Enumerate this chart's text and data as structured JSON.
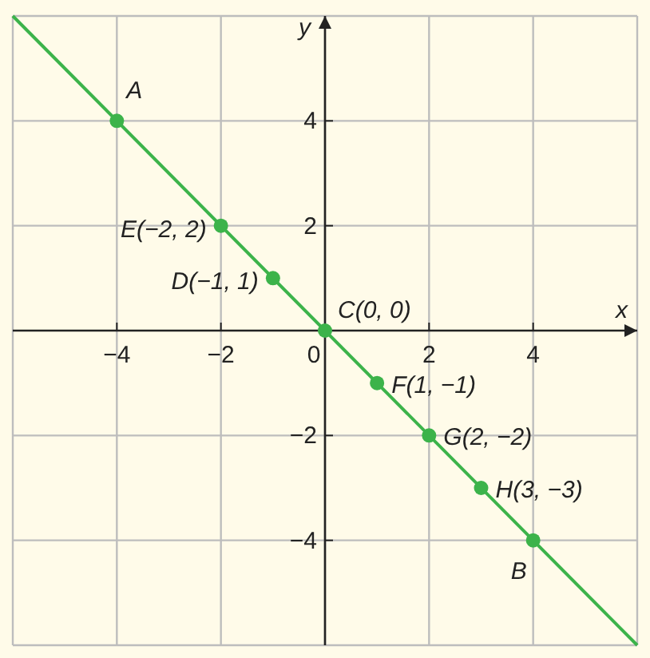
{
  "chart_data": {
    "type": "line",
    "xlabel": "x",
    "ylabel": "y",
    "xlim": [
      -6,
      6
    ],
    "ylim": [
      -6,
      6
    ],
    "xticks": [
      {
        "value": -6,
        "label": null
      },
      {
        "value": -4,
        "label": "−4"
      },
      {
        "value": -2,
        "label": "−2"
      },
      {
        "value": 0,
        "label": "0"
      },
      {
        "value": 2,
        "label": "2"
      },
      {
        "value": 4,
        "label": "4"
      },
      {
        "value": 6,
        "label": null
      }
    ],
    "yticks": [
      {
        "value": -6,
        "label": null
      },
      {
        "value": -4,
        "label": "−4"
      },
      {
        "value": -2,
        "label": "−2"
      },
      {
        "value": 2,
        "label": "2"
      },
      {
        "value": 4,
        "label": "4"
      },
      {
        "value": 6,
        "label": null
      }
    ],
    "grid": true,
    "series": [
      {
        "color": "#3cb34a",
        "x": [
          -6,
          6
        ],
        "values": [
          6,
          -6
        ],
        "marker": "none"
      },
      {
        "type": "scatter",
        "color": "#3cb34a",
        "x": [
          -4,
          -2,
          -1,
          0,
          1,
          2,
          3,
          4
        ],
        "values": [
          4,
          2,
          1,
          0,
          -1,
          -2,
          -3,
          -4
        ],
        "marker": "circle"
      }
    ],
    "annotations": [
      {
        "text": "A",
        "x": -4,
        "y": 4
      },
      {
        "text": "E(−2, 2)",
        "x": -2,
        "y": 2
      },
      {
        "text": "D(−1, 1)",
        "x": -1,
        "y": 1
      },
      {
        "text": "C(0, 0)",
        "x": 0,
        "y": 0
      },
      {
        "text": "F(1, −1)",
        "x": 1,
        "y": -1
      },
      {
        "text": "G(2, −2)",
        "x": 2,
        "y": -2
      },
      {
        "text": "H(3, −3)",
        "x": 3,
        "y": -3
      },
      {
        "text": "B",
        "x": 4,
        "y": -4
      }
    ]
  }
}
